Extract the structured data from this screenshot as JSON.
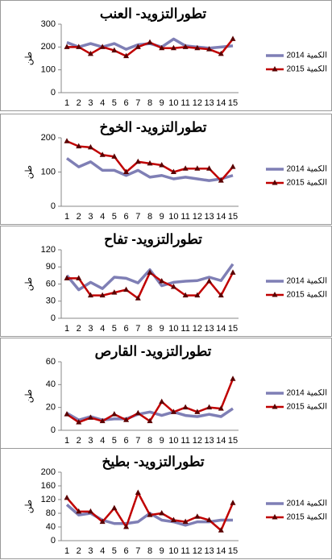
{
  "chart_data": [
    {
      "type": "line",
      "title": "تطورالتزويد- العنب",
      "y_label": "طن",
      "x": [
        1,
        2,
        3,
        4,
        5,
        6,
        7,
        8,
        9,
        10,
        11,
        12,
        13,
        14,
        15
      ],
      "ylim": [
        0,
        300
      ],
      "yticks": [
        0,
        100,
        200,
        300
      ],
      "series": [
        {
          "name": "الكمية 2014",
          "color": "#7f7fb5",
          "values": [
            220,
            200,
            215,
            200,
            215,
            190,
            210,
            215,
            200,
            235,
            205,
            200,
            195,
            200,
            205
          ]
        },
        {
          "name": "الكمية 2015",
          "color": "#c00000",
          "values": [
            200,
            200,
            170,
            200,
            185,
            160,
            200,
            220,
            195,
            195,
            200,
            195,
            190,
            170,
            235
          ]
        }
      ]
    },
    {
      "type": "line",
      "title": "تطورالتزويد- الخوخ",
      "y_label": "طن",
      "x": [
        1,
        2,
        3,
        4,
        5,
        6,
        7,
        8,
        9,
        10,
        11,
        12,
        13,
        14,
        15
      ],
      "ylim": [
        0,
        200
      ],
      "yticks": [
        0,
        100,
        200
      ],
      "series": [
        {
          "name": "الكمية 2014",
          "color": "#7f7fb5",
          "values": [
            140,
            115,
            130,
            105,
            105,
            90,
            105,
            85,
            90,
            80,
            85,
            80,
            75,
            80,
            90
          ]
        },
        {
          "name": "الكمية 2015",
          "color": "#c00000",
          "values": [
            190,
            175,
            172,
            150,
            145,
            100,
            130,
            125,
            120,
            100,
            110,
            110,
            110,
            75,
            115
          ]
        }
      ]
    },
    {
      "type": "line",
      "title": "تطورالتزويد- تفاح",
      "y_label": "طن",
      "x": [
        1,
        2,
        3,
        4,
        5,
        6,
        7,
        8,
        9,
        10,
        11,
        12,
        13,
        14,
        15
      ],
      "ylim": [
        0,
        120
      ],
      "yticks": [
        0,
        30,
        60,
        90,
        120
      ],
      "series": [
        {
          "name": "الكمية 2014",
          "color": "#7f7fb5",
          "values": [
            75,
            50,
            63,
            52,
            72,
            70,
            62,
            85,
            57,
            63,
            65,
            66,
            72,
            66,
            95
          ]
        },
        {
          "name": "الكمية 2015",
          "color": "#c00000",
          "values": [
            70,
            70,
            40,
            40,
            45,
            50,
            35,
            80,
            65,
            55,
            40,
            40,
            65,
            40,
            80
          ]
        }
      ]
    },
    {
      "type": "line",
      "title": "تطورالتزويد- القارص",
      "y_label": "طن",
      "x": [
        1,
        2,
        3,
        4,
        5,
        6,
        7,
        8,
        9,
        10,
        11,
        12,
        13,
        14,
        15
      ],
      "ylim": [
        0,
        60
      ],
      "yticks": [
        0,
        20,
        40,
        60
      ],
      "series": [
        {
          "name": "الكمية 2014",
          "color": "#7f7fb5",
          "values": [
            15,
            9,
            12,
            9,
            10,
            10,
            14,
            16,
            13,
            16,
            13,
            12,
            14,
            12,
            19
          ]
        },
        {
          "name": "الكمية 2015",
          "color": "#c00000",
          "values": [
            14,
            7,
            11,
            8,
            14,
            9,
            15,
            8,
            25,
            16,
            20,
            16,
            20,
            19,
            45
          ]
        }
      ]
    },
    {
      "type": "line",
      "title": "تطورالتزويد- بطيخ",
      "y_label": "طن",
      "x": [
        1,
        2,
        3,
        4,
        5,
        6,
        7,
        8,
        9,
        10,
        11,
        12,
        13,
        14,
        15
      ],
      "ylim": [
        0,
        200
      ],
      "yticks": [
        0,
        40,
        80,
        120,
        160,
        200
      ],
      "series": [
        {
          "name": "الكمية 2014",
          "color": "#7f7fb5",
          "values": [
            105,
            75,
            80,
            60,
            50,
            50,
            55,
            80,
            60,
            55,
            45,
            55,
            55,
            60,
            60
          ]
        },
        {
          "name": "الكمية 2015",
          "color": "#c00000",
          "values": [
            125,
            85,
            85,
            55,
            95,
            40,
            140,
            75,
            80,
            60,
            55,
            70,
            60,
            30,
            110
          ]
        }
      ]
    }
  ]
}
